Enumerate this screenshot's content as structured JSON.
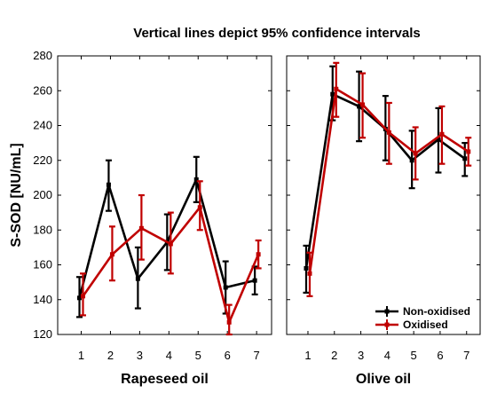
{
  "chart_data": {
    "type": "line",
    "title": "Vertical lines depict 95% confidence intervals",
    "ylabel": "S-SOD [NU/mL]",
    "ylim": [
      120,
      280
    ],
    "yticks": [
      120,
      140,
      160,
      180,
      200,
      220,
      240,
      260,
      280
    ],
    "legend_position": "bottom-right",
    "series_styles": [
      {
        "name": "Non-oxidised",
        "color": "#000000"
      },
      {
        "name": "Oxidised",
        "color": "#c00000"
      }
    ],
    "panels": [
      {
        "xlabel": "Rapeseed oil",
        "categories": [
          "1",
          "2",
          "3",
          "4",
          "5",
          "6",
          "7"
        ],
        "series": [
          {
            "name": "Non-oxidised",
            "values": [
              141,
              206,
              152,
              173,
              209,
              147,
              151
            ],
            "ci_low": [
              130,
              191,
              135,
              157,
              196,
              132,
              143
            ],
            "ci_high": [
              153,
              220,
              170,
              189,
              222,
              162,
              159
            ]
          },
          {
            "name": "Oxidised",
            "values": [
              142,
              166,
              181,
              172,
              193,
              127,
              166
            ],
            "ci_low": [
              131,
              151,
              163,
              155,
              180,
              120,
              158
            ],
            "ci_high": [
              155,
              182,
              200,
              190,
              208,
              137,
              174
            ]
          }
        ]
      },
      {
        "xlabel": "Olive oil",
        "categories": [
          "1",
          "2",
          "3",
          "4",
          "5",
          "6",
          "7"
        ],
        "series": [
          {
            "name": "Non-oxidised",
            "values": [
              158,
              258,
              251,
              238,
              220,
              232,
              221
            ],
            "ci_low": [
              144,
              243,
              231,
              220,
              204,
              213,
              211
            ],
            "ci_high": [
              171,
              274,
              271,
              257,
              237,
              250,
              230
            ]
          },
          {
            "name": "Oxidised",
            "values": [
              155,
              261,
              252,
              236,
              224,
              235,
              225
            ],
            "ci_low": [
              142,
              245,
              233,
              218,
              209,
              218,
              217
            ],
            "ci_high": [
              167,
              276,
              270,
              253,
              239,
              251,
              233
            ]
          }
        ]
      }
    ]
  }
}
